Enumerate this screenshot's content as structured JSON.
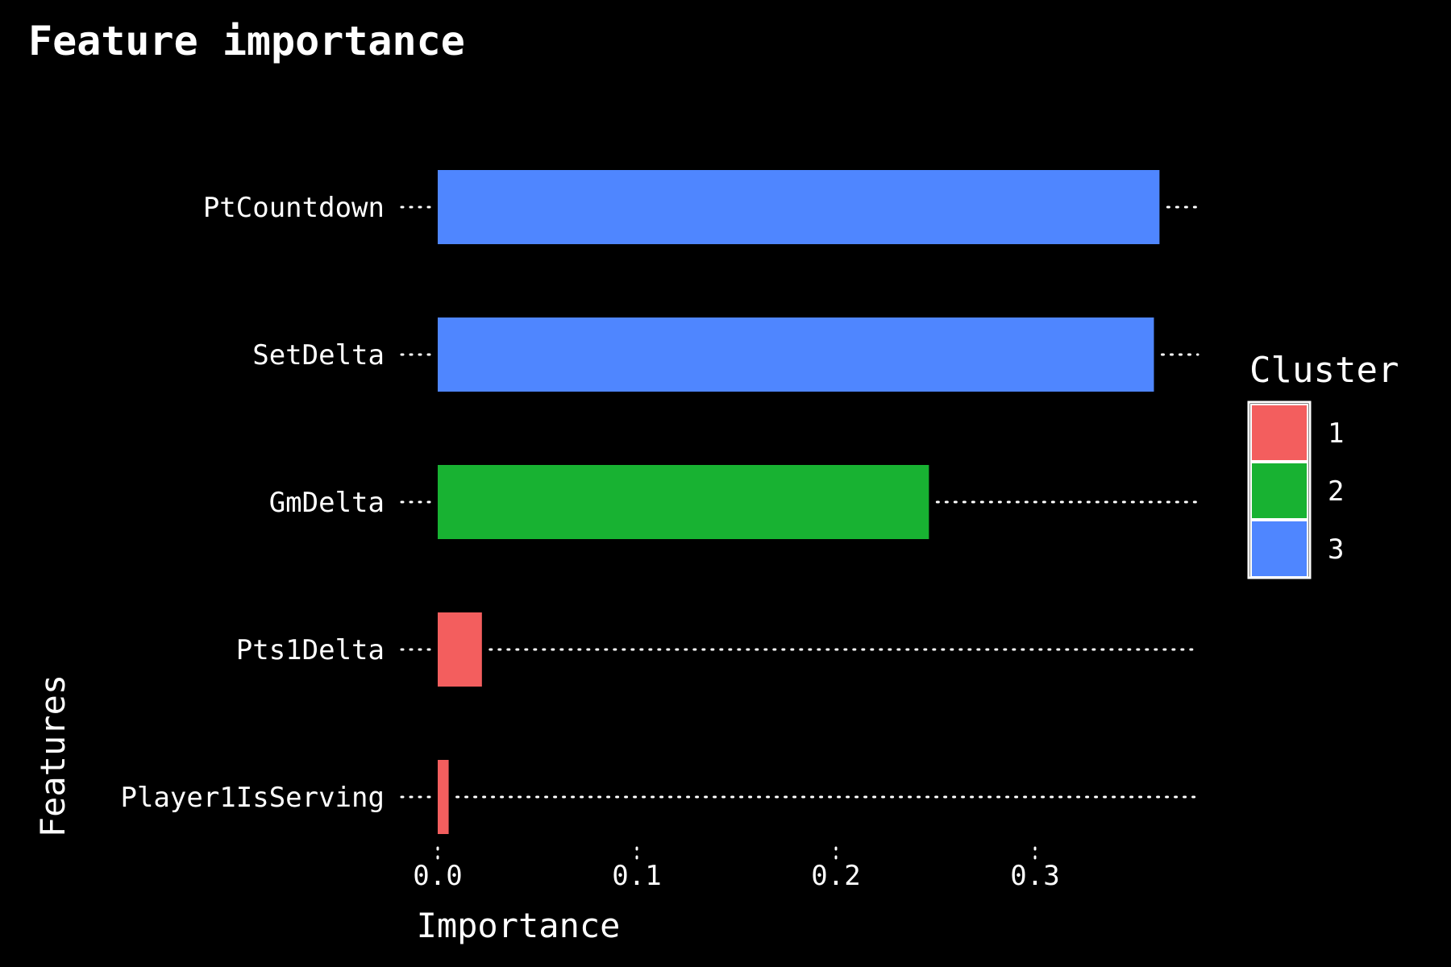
{
  "chart_data": {
    "type": "bar",
    "orientation": "horizontal",
    "title": "Feature importance",
    "xlabel": "Importance",
    "ylabel": "Features",
    "xlim": [
      0,
      0.385
    ],
    "xticks": [
      0.0,
      0.1,
      0.2,
      0.3
    ],
    "xtick_labels": [
      "0.0",
      "0.1",
      "0.2",
      "0.3"
    ],
    "categories": [
      "PtCountdown",
      "SetDelta",
      "GmDelta",
      "Pts1Delta",
      "Player1IsServing"
    ],
    "values": [
      0.3625,
      0.3597,
      0.2467,
      0.0222,
      0.0055
    ],
    "cluster": [
      "3",
      "3",
      "2",
      "1",
      "1"
    ],
    "grid": "dotted guide lines per bar",
    "legend": {
      "title": "Cluster",
      "position": "right",
      "entries": [
        {
          "label": "1",
          "color": "#F35E5E"
        },
        {
          "label": "2",
          "color": "#18B232"
        },
        {
          "label": "3",
          "color": "#4F86FF"
        }
      ]
    },
    "colors": {
      "background": "#000000",
      "text": "#FFFFFF"
    }
  }
}
